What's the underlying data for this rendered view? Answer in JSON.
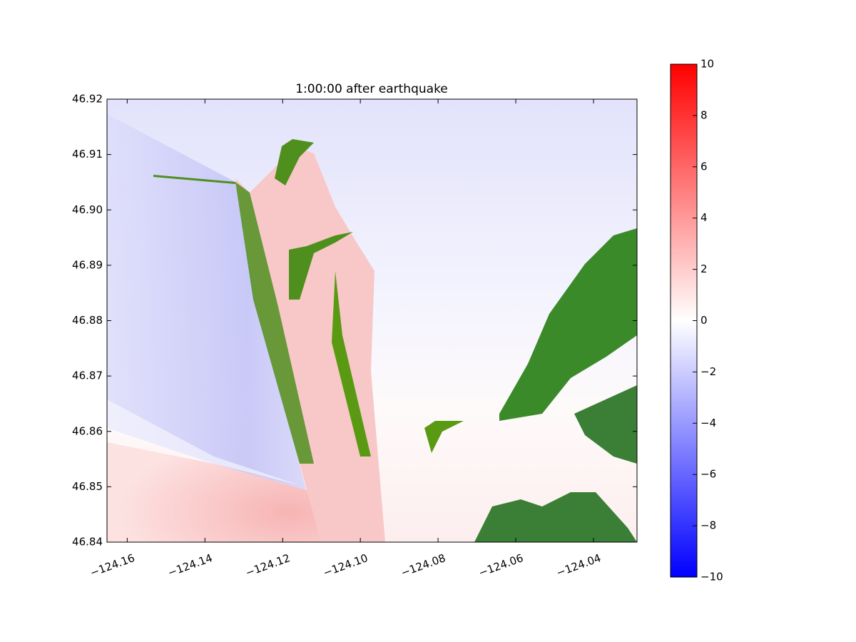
{
  "chart_data": {
    "type": "heatmap",
    "title": "1:00:00 after earthquake",
    "xlim": [
      -124.1652,
      -124.0288
    ],
    "ylim": [
      46.84,
      46.92
    ],
    "xticks": [
      {
        "value": -124.16,
        "label": "−124.16"
      },
      {
        "value": -124.14,
        "label": "−124.14"
      },
      {
        "value": -124.12,
        "label": "−124.12"
      },
      {
        "value": -124.1,
        "label": "−124.10"
      },
      {
        "value": -124.08,
        "label": "−124.08"
      },
      {
        "value": -124.06,
        "label": "−124.06"
      },
      {
        "value": -124.04,
        "label": "−124.04"
      }
    ],
    "yticks": [
      46.84,
      46.85,
      46.86,
      46.87,
      46.88,
      46.89,
      {
        "value": 46.9,
        "label": "46.90"
      },
      46.91,
      46.92
    ],
    "colormap": [
      "#0000ff",
      "#ffffff",
      "#ff0000"
    ],
    "clim": [
      -10,
      10
    ],
    "cticks": [
      {
        "value": -10,
        "label": "−10"
      },
      {
        "value": -8,
        "label": "−8"
      },
      {
        "value": -6,
        "label": "−6"
      },
      {
        "value": -4,
        "label": "−4"
      },
      {
        "value": -2,
        "label": "−2"
      },
      0,
      2,
      4,
      6,
      8,
      10
    ]
  }
}
